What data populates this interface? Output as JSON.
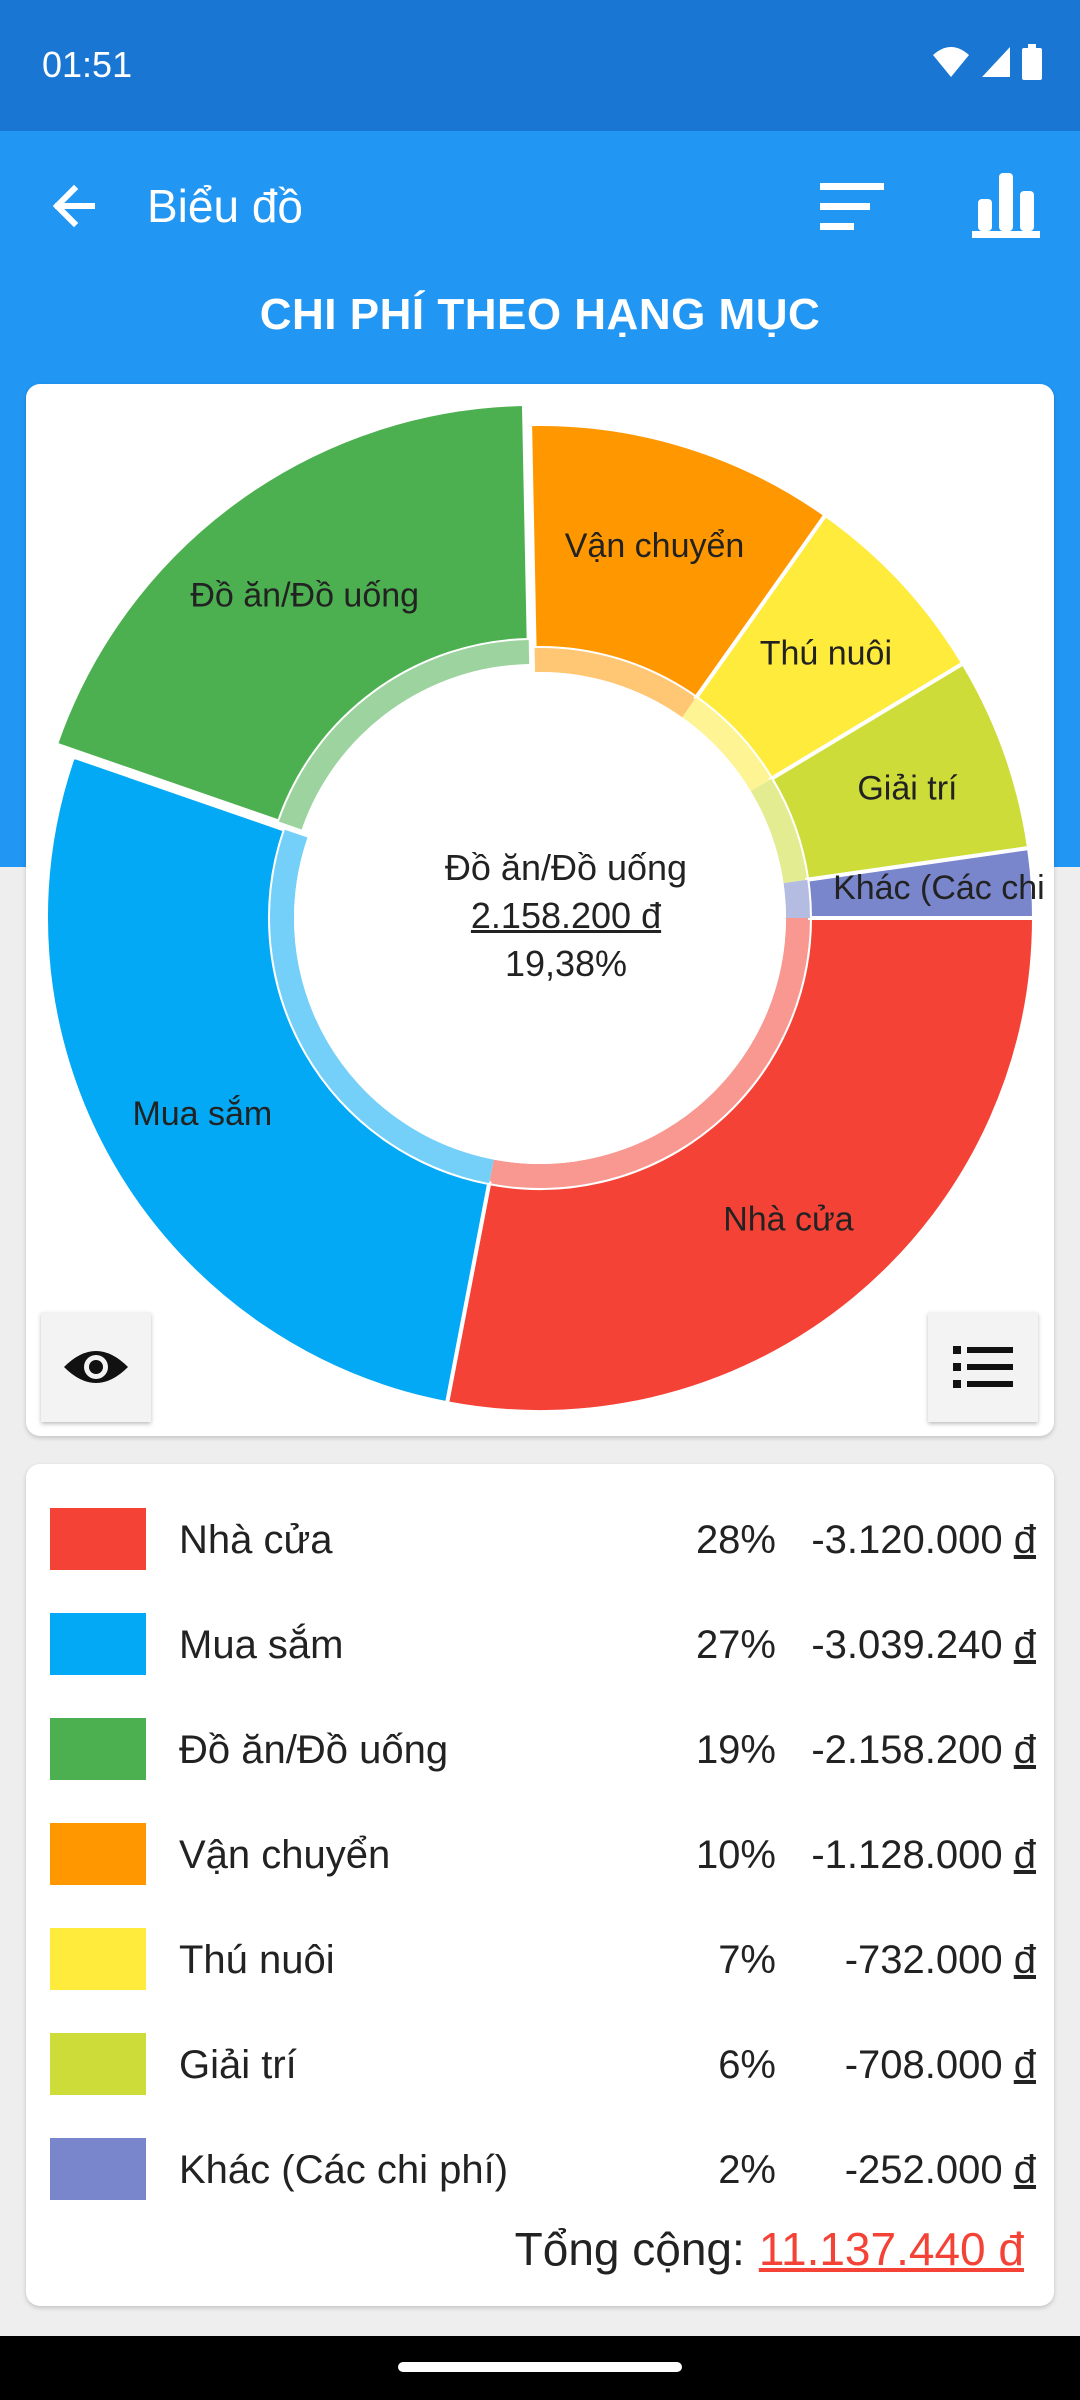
{
  "status": {
    "time": "01:51"
  },
  "appbar": {
    "title": "Biểu đồ",
    "back_icon": "arrow-back-icon",
    "sort_icon": "sort-icon",
    "chart_icon": "bar-chart-icon"
  },
  "chart_title": "CHI PHÍ THEO HẠNG MỤC",
  "center": {
    "name": "Đồ ăn/Đồ uống",
    "amount": "2.158.200 đ",
    "percent": "19,38%"
  },
  "chart_data": {
    "type": "pie",
    "title": "CHI PHÍ THEO HẠNG MỤC",
    "donut": true,
    "categories": [
      "Nhà cửa",
      "Mua sắm",
      "Đồ ăn/Đồ uống",
      "Vận chuyển",
      "Thú nuôi",
      "Giải trí",
      "Khác (Các chi phí)"
    ],
    "values": [
      3120000,
      3039240,
      2158200,
      1128000,
      732000,
      708000,
      252000
    ],
    "colors": [
      "#f44336",
      "#03a9f4",
      "#4caf50",
      "#ff9800",
      "#ffeb3b",
      "#cddc39",
      "#7986cb"
    ],
    "selected": "Đồ ăn/Đồ uống"
  },
  "legend": {
    "items": [
      {
        "name": "Nhà cửa",
        "percent": "28%",
        "amount": "-3.120.000",
        "color": "#f44336"
      },
      {
        "name": "Mua sắm",
        "percent": "27%",
        "amount": "-3.039.240",
        "color": "#03a9f4"
      },
      {
        "name": "Đồ ăn/Đồ uống",
        "percent": "19%",
        "amount": "-2.158.200",
        "color": "#4caf50"
      },
      {
        "name": "Vận chuyển",
        "percent": "10%",
        "amount": "-1.128.000",
        "color": "#ff9800"
      },
      {
        "name": "Thú nuôi",
        "percent": "7%",
        "amount": "-732.000",
        "color": "#ffeb3b"
      },
      {
        "name": "Giải trí",
        "percent": "6%",
        "amount": "-708.000",
        "color": "#cddc39"
      },
      {
        "name": "Khác (Các chi phí)",
        "percent": "2%",
        "amount": "-252.000",
        "color": "#7986cb"
      }
    ],
    "currency": "đ",
    "total_label": "Tổng cộng:",
    "total_value": "11.137.440 đ"
  },
  "buttons": {
    "eye_icon": "eye-icon",
    "list_icon": "list-icon"
  }
}
